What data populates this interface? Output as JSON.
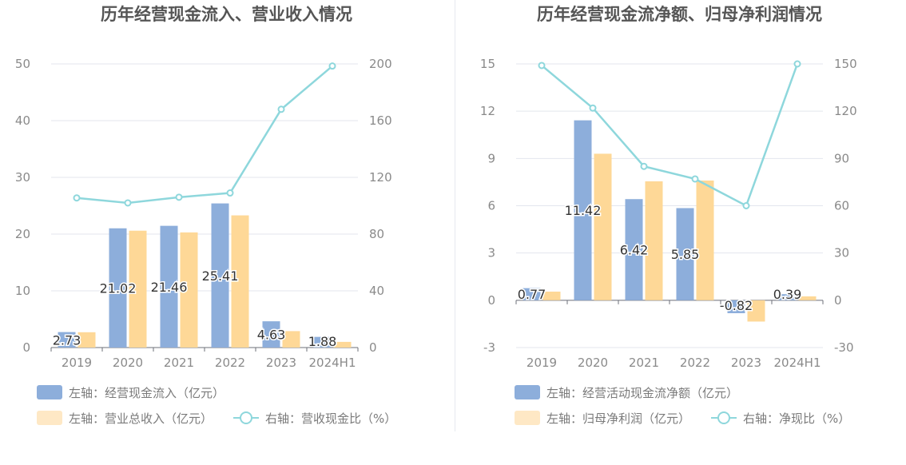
{
  "chart_data": [
    {
      "type": "bar",
      "title": "历年经营现金流入、营业收入情况",
      "categories": [
        "2019",
        "2020",
        "2021",
        "2022",
        "2023",
        "2024H1"
      ],
      "left_axis": {
        "min": 0,
        "max": 50,
        "ticks": [
          0,
          10,
          20,
          30,
          40,
          50
        ]
      },
      "right_axis": {
        "min": 0,
        "max": 200,
        "ticks": [
          0,
          40,
          80,
          120,
          160,
          200
        ]
      },
      "grid": true,
      "legend_position": "bottom-left",
      "series": [
        {
          "name": "左轴：经营现金流入（亿元）",
          "type": "bar",
          "axis": "left",
          "color": "#8daedb",
          "values": [
            2.73,
            21.02,
            21.46,
            25.41,
            4.63,
            1.88
          ],
          "labels": [
            "2.73",
            "21.02",
            "21.46",
            "25.41",
            "4.63",
            "1.88"
          ]
        },
        {
          "name": "左轴：营业总收入（亿元）",
          "type": "bar",
          "axis": "left",
          "color": "#fed897",
          "values": [
            2.7,
            20.6,
            20.3,
            23.3,
            2.9,
            1.0
          ]
        },
        {
          "name": "右轴：营收现金比（%）",
          "type": "line",
          "axis": "right",
          "color": "#8ed7dc",
          "values": [
            105.5,
            102.0,
            106.0,
            109.0,
            168.0,
            198.5
          ]
        }
      ]
    },
    {
      "type": "bar",
      "title": "历年经营现金流净额、归母净利润情况",
      "categories": [
        "2019",
        "2020",
        "2021",
        "2022",
        "2023",
        "2024H1"
      ],
      "left_axis": {
        "min": -3,
        "max": 15,
        "ticks": [
          -3,
          0,
          3,
          6,
          9,
          12,
          15
        ]
      },
      "right_axis": {
        "min": -30,
        "max": 150,
        "ticks": [
          -30,
          0,
          30,
          60,
          90,
          120,
          150
        ]
      },
      "grid": true,
      "legend_position": "bottom-left",
      "series": [
        {
          "name": "左轴：经营活动现金流净额（亿元）",
          "type": "bar",
          "axis": "left",
          "color": "#8daedb",
          "values": [
            0.77,
            11.42,
            6.42,
            5.85,
            -0.82,
            0.39
          ],
          "labels": [
            "0.77",
            "11.42",
            "6.42",
            "5.85",
            "-0.82",
            "0.39"
          ]
        },
        {
          "name": "左轴：归母净利润（亿元）",
          "type": "bar",
          "axis": "left",
          "color": "#fed897",
          "values": [
            0.55,
            9.3,
            7.55,
            7.6,
            -1.35,
            0.25
          ]
        },
        {
          "name": "右轴：净现比（%）",
          "type": "line",
          "axis": "right",
          "color": "#8ed7dc",
          "values": [
            149.0,
            122.0,
            85.0,
            77.0,
            60.0,
            150.0
          ]
        }
      ]
    }
  ]
}
